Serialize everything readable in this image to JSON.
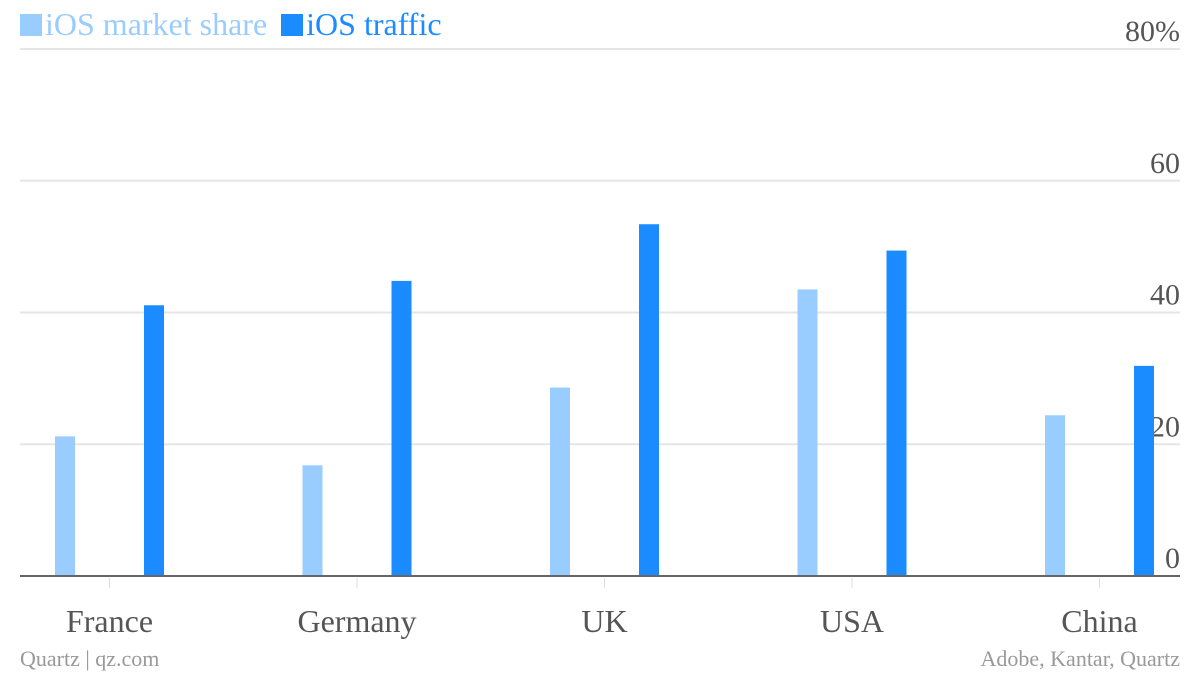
{
  "colors": {
    "market_share": "#99ccff",
    "traffic": "#1a8cff",
    "grid": "#e5e5e5",
    "axis": "#666666",
    "tick_text": "#555555",
    "footer_text": "#999999"
  },
  "footer": {
    "left": "Quartz | qz.com",
    "right": "Adobe, Kantar, Quartz"
  },
  "chart_data": {
    "type": "bar",
    "categories": [
      "France",
      "Germany",
      "UK",
      "USA",
      "China"
    ],
    "series": [
      {
        "name": "iOS market share",
        "values": [
          21.2,
          16.8,
          28.6,
          43.5,
          24.4
        ]
      },
      {
        "name": "iOS traffic",
        "values": [
          41.1,
          44.8,
          53.4,
          49.4,
          31.9
        ]
      }
    ],
    "ylim": [
      0,
      80
    ],
    "y_ticks": [
      0,
      20,
      40,
      60,
      80
    ],
    "y_tick_labels": [
      "0",
      "20",
      "40",
      "60",
      "80%"
    ],
    "grid": true,
    "legend_position": "top-left",
    "xlabel": "",
    "ylabel": ""
  }
}
